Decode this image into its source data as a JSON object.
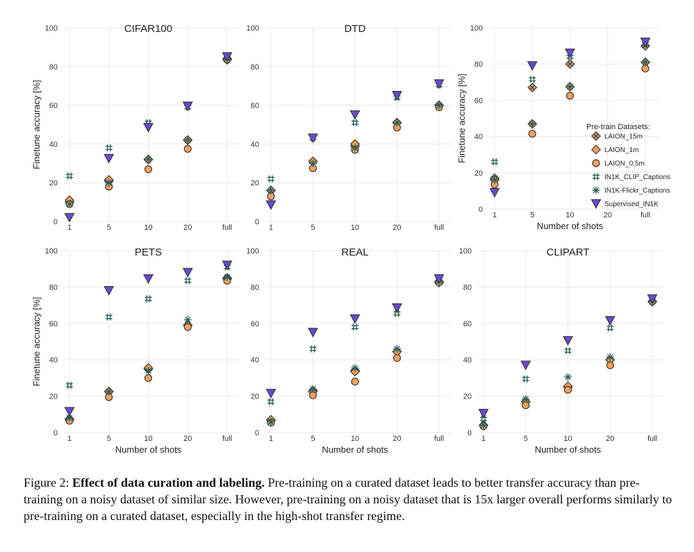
{
  "chart_data": [
    {
      "type": "scatter",
      "title": "CIFAR100",
      "categories": [
        "1",
        "5",
        "10",
        "20",
        "full"
      ],
      "xlabel": "",
      "ylabel": "Finetune accuracy [%]",
      "ylim": [
        0,
        100
      ],
      "yticks": [
        0,
        20,
        40,
        60,
        80,
        100
      ],
      "grid": true,
      "series": [
        {
          "name": "LAION_15m",
          "values": [
            10,
            21,
            32,
            42,
            84
          ]
        },
        {
          "name": "LAION_1m",
          "values": [
            11,
            21.5,
            32,
            42,
            83.5
          ]
        },
        {
          "name": "LAION_0.5m",
          "values": [
            9,
            18,
            27,
            37.5,
            83.5
          ]
        },
        {
          "name": "IN1K_CLIP_Captions",
          "values": [
            23.5,
            38,
            51,
            59,
            84.5
          ]
        },
        {
          "name": "IN1K-Flickr_Captions",
          "values": [
            9,
            20,
            32,
            42,
            84
          ]
        },
        {
          "name": "Supervised_IN1K",
          "values": [
            2,
            32.5,
            48.5,
            59.5,
            85
          ]
        }
      ]
    },
    {
      "type": "scatter",
      "title": "DTD",
      "categories": [
        "1",
        "5",
        "10",
        "20",
        "full"
      ],
      "xlabel": "",
      "ylabel": "",
      "ylim": [
        0,
        100
      ],
      "yticks": [
        0,
        20,
        40,
        60,
        80,
        100
      ],
      "grid": true,
      "series": [
        {
          "name": "LAION_15m",
          "values": [
            16,
            31,
            39,
            51,
            60
          ]
        },
        {
          "name": "LAION_1m",
          "values": [
            16,
            31,
            40,
            51,
            60
          ]
        },
        {
          "name": "LAION_0.5m",
          "values": [
            13,
            27.5,
            37,
            48.5,
            59
          ]
        },
        {
          "name": "IN1K_CLIP_Captions",
          "values": [
            22,
            43,
            51,
            64,
            70.5
          ]
        },
        {
          "name": "IN1K-Flickr_Captions",
          "values": [
            16,
            30,
            38,
            51,
            60
          ]
        },
        {
          "name": "Supervised_IN1K",
          "values": [
            8.5,
            43,
            55,
            65,
            71
          ]
        }
      ]
    },
    {
      "type": "scatter",
      "title": "",
      "categories": [
        "1",
        "5",
        "10",
        "20",
        "full"
      ],
      "xlabel": "Number of shots",
      "ylabel": "Finetune accuracy [%]",
      "ylim": [
        0,
        100
      ],
      "yticks": [
        0,
        20,
        40,
        60,
        80,
        100
      ],
      "grid": true,
      "legend": {
        "title": "Pre-train Datasets:",
        "position": "right"
      },
      "series": [
        {
          "name": "LAION_15m",
          "values": [
            17,
            67,
            80,
            null,
            90
          ]
        },
        {
          "name": "LAION_1m",
          "values": [
            16,
            47,
            67.5,
            null,
            81
          ]
        },
        {
          "name": "LAION_0.5m",
          "values": [
            13.5,
            41.5,
            62.5,
            null,
            77.5
          ]
        },
        {
          "name": "IN1K_CLIP_Captions",
          "values": [
            26,
            71.5,
            84,
            null,
            91
          ]
        },
        {
          "name": "IN1K-Flickr_Captions",
          "values": [
            16,
            47,
            67.5,
            null,
            81
          ]
        },
        {
          "name": "Supervised_IN1K",
          "values": [
            9,
            79,
            86,
            null,
            92
          ]
        }
      ]
    },
    {
      "type": "scatter",
      "title": "PETS",
      "categories": [
        "1",
        "5",
        "10",
        "20",
        "full"
      ],
      "xlabel": "Number of shots",
      "ylabel": "Finetune accuracy [%]",
      "ylim": [
        0,
        100
      ],
      "yticks": [
        0,
        20,
        40,
        60,
        80,
        100
      ],
      "grid": true,
      "series": [
        {
          "name": "LAION_15m",
          "values": [
            7.5,
            22.5,
            35,
            59,
            85
          ]
        },
        {
          "name": "LAION_1m",
          "values": [
            7,
            22.5,
            35.5,
            59,
            84.5
          ]
        },
        {
          "name": "LAION_0.5m",
          "values": [
            6.5,
            19.5,
            30,
            58,
            83.5
          ]
        },
        {
          "name": "IN1K_CLIP_Captions",
          "values": [
            26,
            63.5,
            73.5,
            83.5,
            91
          ]
        },
        {
          "name": "IN1K-Flickr_Captions",
          "values": [
            8,
            22.5,
            34,
            62,
            85.5
          ]
        },
        {
          "name": "Supervised_IN1K",
          "values": [
            11.5,
            78,
            84.5,
            88,
            92
          ]
        }
      ]
    },
    {
      "type": "scatter",
      "title": "REAL",
      "categories": [
        "1",
        "5",
        "10",
        "20",
        "full"
      ],
      "xlabel": "Number of shots",
      "ylabel": "",
      "ylim": [
        0,
        100
      ],
      "yticks": [
        0,
        20,
        40,
        60,
        80,
        100
      ],
      "grid": true,
      "series": [
        {
          "name": "LAION_15m",
          "values": [
            6.5,
            23,
            34,
            44.5,
            83
          ]
        },
        {
          "name": "LAION_1m",
          "values": [
            7,
            22.5,
            33.5,
            44.5,
            82.5
          ]
        },
        {
          "name": "LAION_0.5m",
          "values": [
            5.5,
            20.5,
            28,
            41,
            82.5
          ]
        },
        {
          "name": "IN1K_CLIP_Captions",
          "values": [
            17,
            46,
            58,
            65.5,
            84
          ]
        },
        {
          "name": "IN1K-Flickr_Captions",
          "values": [
            6,
            24,
            35.5,
            46,
            83
          ]
        },
        {
          "name": "Supervised_IN1K",
          "values": [
            21.5,
            55,
            62.5,
            68.5,
            84.5
          ]
        }
      ]
    },
    {
      "type": "scatter",
      "title": "CLIPART",
      "categories": [
        "1",
        "5",
        "10",
        "20",
        "full"
      ],
      "xlabel": "Number of shots",
      "ylabel": "",
      "ylim": [
        0,
        100
      ],
      "yticks": [
        0,
        20,
        40,
        60,
        80,
        100
      ],
      "grid": true,
      "series": [
        {
          "name": "LAION_15m",
          "values": [
            4,
            17,
            25,
            40,
            72
          ]
        },
        {
          "name": "LAION_1m",
          "values": [
            4,
            17,
            25.5,
            40,
            72
          ]
        },
        {
          "name": "LAION_0.5m",
          "values": [
            3.5,
            15,
            23.5,
            37,
            72
          ]
        },
        {
          "name": "IN1K_CLIP_Captions",
          "values": [
            7.5,
            29.5,
            45,
            57.5,
            73.5
          ]
        },
        {
          "name": "IN1K-Flickr_Captions",
          "values": [
            4,
            18.5,
            30.5,
            41.5,
            72
          ]
        },
        {
          "name": "Supervised_IN1K",
          "values": [
            10.5,
            37,
            50.5,
            61.5,
            73.5
          ]
        }
      ]
    }
  ],
  "styles": {
    "marker_fill": {
      "LAION_15m": "#d19a66",
      "LAION_1m": "#f3a14a",
      "LAION_0.5m": "#f2a25a",
      "IN1K_CLIP_Captions": "#2f5f5f",
      "IN1K-Flickr_Captions": "#2f5f5f",
      "Supervised_IN1K": "#6a48d7"
    },
    "marker_stroke": "#3a3a3a",
    "grid_color": "#e8e8e8"
  },
  "caption": {
    "label": "Figure 2: ",
    "bold": "Effect of data curation and labeling.",
    "text": " Pre-training on a curated dataset leads to better transfer accuracy than pre-training on a noisy dataset of similar size. However, pre-training on a noisy dataset that is 15x larger overall performs similarly to pre-training on a curated dataset, especially in the high-shot transfer regime."
  }
}
